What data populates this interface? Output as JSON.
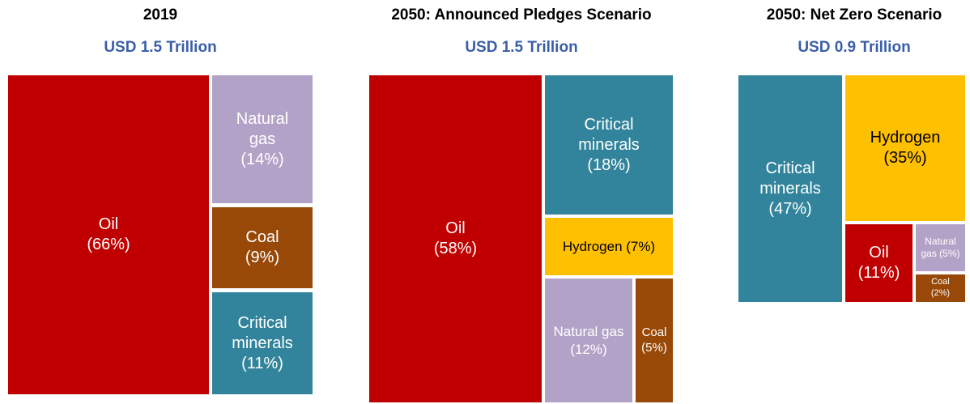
{
  "chart_data": [
    {
      "type": "treemap",
      "title": "2019",
      "subtitle": "USD 1.5 Trillion",
      "categories": [
        "Oil",
        "Natural gas",
        "Coal",
        "Critical minerals"
      ],
      "values": [
        66,
        14,
        9,
        11
      ],
      "value_labels": [
        "(66%)",
        "(14%)",
        "(9%)",
        "(11%)"
      ],
      "colors": [
        "#c00000",
        "#b3a2c7",
        "#984807",
        "#31849b"
      ]
    },
    {
      "type": "treemap",
      "title": "2050: Announced Pledges Scenario",
      "subtitle": "USD 1.5 Trillion",
      "categories": [
        "Oil",
        "Critical minerals",
        "Hydrogen",
        "Natural gas",
        "Coal"
      ],
      "values": [
        58,
        18,
        7,
        12,
        5
      ],
      "value_labels": [
        "(58%)",
        "(18%)",
        "(7%)",
        "(12%)",
        "(5%)"
      ],
      "colors": [
        "#c00000",
        "#31849b",
        "#ffc000",
        "#b3a2c7",
        "#984807"
      ]
    },
    {
      "type": "treemap",
      "title": "2050: Net Zero Scenario",
      "subtitle": "USD 0.9 Trillion",
      "categories": [
        "Critical minerals",
        "Hydrogen",
        "Oil",
        "Natural gas",
        "Coal"
      ],
      "values": [
        47,
        35,
        11,
        5,
        2
      ],
      "value_labels": [
        "(47%)",
        "(35%)",
        "(11%)",
        "(5%)",
        "(2%)"
      ],
      "colors": [
        "#31849b",
        "#ffc000",
        "#c00000",
        "#b3a2c7",
        "#984807"
      ]
    }
  ]
}
